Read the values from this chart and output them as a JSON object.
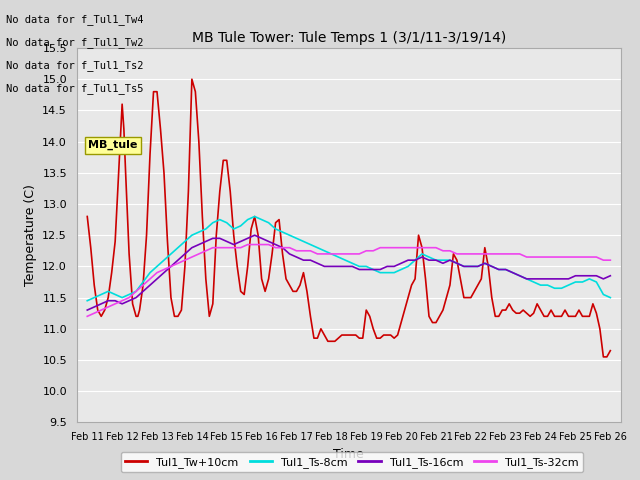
{
  "title": "MB Tule Tower: Tule Temps 1 (3/1/11-3/19/14)",
  "xlabel": "Time",
  "ylabel": "Temperature (C)",
  "ylim": [
    9.5,
    15.5
  ],
  "bg_color": "#d8d8d8",
  "plot_bg_color": "#e8e8e8",
  "grid_color": "#ffffff",
  "no_data_lines": [
    "No data for f_Tul1_Tw4",
    "No data for f_Tul1_Tw2",
    "No data for f_Tul1_Ts2",
    "No data for f_Tul1_Ts5"
  ],
  "tooltip_text": "MB_tule",
  "x_tick_labels": [
    "Feb 11",
    "Feb 12",
    "Feb 13",
    "Feb 14",
    "Feb 15",
    "Feb 16",
    "Feb 17",
    "Feb 18",
    "Feb 19",
    "Feb 20",
    "Feb 21",
    "Feb 22",
    "Feb 23",
    "Feb 24",
    "Feb 25",
    "Feb 26"
  ],
  "series": {
    "Tul1_Tw+10cm": {
      "color": "#cc0000",
      "linewidth": 1.2,
      "data_x": [
        0,
        0.1,
        0.2,
        0.3,
        0.4,
        0.5,
        0.6,
        0.7,
        0.8,
        0.9,
        1.0,
        1.05,
        1.1,
        1.2,
        1.3,
        1.4,
        1.45,
        1.5,
        1.6,
        1.7,
        1.8,
        1.9,
        2.0,
        2.1,
        2.2,
        2.3,
        2.4,
        2.5,
        2.6,
        2.7,
        2.8,
        2.9,
        3.0,
        3.1,
        3.2,
        3.3,
        3.4,
        3.5,
        3.6,
        3.7,
        3.8,
        3.9,
        4.0,
        4.1,
        4.2,
        4.3,
        4.4,
        4.5,
        4.6,
        4.7,
        4.8,
        4.9,
        5.0,
        5.1,
        5.2,
        5.3,
        5.4,
        5.5,
        5.6,
        5.7,
        5.8,
        5.9,
        6.0,
        6.1,
        6.2,
        6.3,
        6.4,
        6.5,
        6.6,
        6.7,
        6.8,
        6.9,
        7.0,
        7.1,
        7.2,
        7.3,
        7.4,
        7.5,
        7.6,
        7.7,
        7.8,
        7.9,
        8.0,
        8.1,
        8.2,
        8.3,
        8.4,
        8.5,
        8.6,
        8.7,
        8.8,
        8.9,
        9.0,
        9.1,
        9.2,
        9.3,
        9.4,
        9.5,
        9.6,
        9.7,
        9.8,
        9.9,
        10.0,
        10.1,
        10.2,
        10.3,
        10.4,
        10.5,
        10.6,
        10.7,
        10.8,
        10.9,
        11.0,
        11.1,
        11.2,
        11.3,
        11.4,
        11.5,
        11.6,
        11.7,
        11.8,
        11.9,
        12.0,
        12.1,
        12.2,
        12.3,
        12.4,
        12.5,
        12.6,
        12.7,
        12.8,
        12.9,
        13.0,
        13.1,
        13.2,
        13.3,
        13.4,
        13.5,
        13.6,
        13.7,
        13.8,
        13.9,
        14.0,
        14.1,
        14.2,
        14.3,
        14.4,
        14.5,
        14.6,
        14.7,
        14.8,
        14.9,
        15.0
      ],
      "data_y": [
        12.8,
        12.3,
        11.7,
        11.3,
        11.2,
        11.3,
        11.5,
        11.9,
        12.4,
        13.5,
        14.6,
        14.2,
        13.5,
        12.2,
        11.4,
        11.2,
        11.2,
        11.3,
        11.7,
        12.5,
        13.8,
        14.8,
        14.8,
        14.2,
        13.5,
        12.4,
        11.5,
        11.2,
        11.2,
        11.3,
        12.0,
        13.2,
        15.0,
        14.8,
        14.0,
        12.8,
        11.8,
        11.2,
        11.4,
        12.5,
        13.2,
        13.7,
        13.7,
        13.2,
        12.5,
        12.0,
        11.6,
        11.55,
        12.0,
        12.6,
        12.8,
        12.5,
        11.8,
        11.6,
        11.8,
        12.2,
        12.7,
        12.75,
        12.2,
        11.8,
        11.7,
        11.6,
        11.6,
        11.7,
        11.9,
        11.6,
        11.2,
        10.85,
        10.85,
        11.0,
        10.9,
        10.8,
        10.8,
        10.8,
        10.85,
        10.9,
        10.9,
        10.9,
        10.9,
        10.9,
        10.85,
        10.85,
        11.3,
        11.2,
        11.0,
        10.85,
        10.85,
        10.9,
        10.9,
        10.9,
        10.85,
        10.9,
        11.1,
        11.3,
        11.5,
        11.7,
        11.8,
        12.5,
        12.3,
        11.8,
        11.2,
        11.1,
        11.1,
        11.2,
        11.3,
        11.5,
        11.7,
        12.2,
        12.1,
        11.8,
        11.5,
        11.5,
        11.5,
        11.6,
        11.7,
        11.8,
        12.3,
        12.0,
        11.5,
        11.2,
        11.2,
        11.3,
        11.3,
        11.4,
        11.3,
        11.25,
        11.25,
        11.3,
        11.25,
        11.2,
        11.25,
        11.4,
        11.3,
        11.2,
        11.2,
        11.3,
        11.2,
        11.2,
        11.2,
        11.3,
        11.2,
        11.2,
        11.2,
        11.3,
        11.2,
        11.2,
        11.2,
        11.4,
        11.25,
        11.0,
        10.55,
        10.55,
        10.65
      ]
    },
    "Tul1_Ts-8cm": {
      "color": "#00dddd",
      "linewidth": 1.2,
      "data_x": [
        0,
        0.2,
        0.4,
        0.6,
        0.8,
        1.0,
        1.2,
        1.4,
        1.6,
        1.8,
        2.0,
        2.2,
        2.4,
        2.6,
        2.8,
        3.0,
        3.2,
        3.4,
        3.6,
        3.8,
        4.0,
        4.2,
        4.4,
        4.6,
        4.8,
        5.0,
        5.2,
        5.4,
        5.6,
        5.8,
        6.0,
        6.2,
        6.4,
        6.6,
        6.8,
        7.0,
        7.2,
        7.4,
        7.6,
        7.8,
        8.0,
        8.2,
        8.4,
        8.6,
        8.8,
        9.0,
        9.2,
        9.4,
        9.6,
        9.8,
        10.0,
        10.2,
        10.4,
        10.6,
        10.8,
        11.0,
        11.2,
        11.4,
        11.6,
        11.8,
        12.0,
        12.2,
        12.4,
        12.6,
        12.8,
        13.0,
        13.2,
        13.4,
        13.6,
        13.8,
        14.0,
        14.2,
        14.4,
        14.6,
        14.8,
        15.0
      ],
      "data_y": [
        11.45,
        11.5,
        11.55,
        11.6,
        11.55,
        11.5,
        11.55,
        11.6,
        11.75,
        11.9,
        12.0,
        12.1,
        12.2,
        12.3,
        12.4,
        12.5,
        12.55,
        12.6,
        12.7,
        12.75,
        12.7,
        12.6,
        12.65,
        12.75,
        12.8,
        12.75,
        12.7,
        12.6,
        12.55,
        12.5,
        12.45,
        12.4,
        12.35,
        12.3,
        12.25,
        12.2,
        12.15,
        12.1,
        12.05,
        12.0,
        12.0,
        11.95,
        11.9,
        11.9,
        11.9,
        11.95,
        12.0,
        12.1,
        12.2,
        12.15,
        12.1,
        12.1,
        12.1,
        12.05,
        12.0,
        12.0,
        12.0,
        12.05,
        12.0,
        11.95,
        11.95,
        11.9,
        11.85,
        11.8,
        11.75,
        11.7,
        11.7,
        11.65,
        11.65,
        11.7,
        11.75,
        11.75,
        11.8,
        11.75,
        11.55,
        11.5
      ]
    },
    "Tul1_Ts-16cm": {
      "color": "#7700bb",
      "linewidth": 1.2,
      "data_x": [
        0,
        0.2,
        0.4,
        0.6,
        0.8,
        1.0,
        1.2,
        1.4,
        1.6,
        1.8,
        2.0,
        2.2,
        2.4,
        2.6,
        2.8,
        3.0,
        3.2,
        3.4,
        3.6,
        3.8,
        4.0,
        4.2,
        4.4,
        4.6,
        4.8,
        5.0,
        5.2,
        5.4,
        5.6,
        5.8,
        6.0,
        6.2,
        6.4,
        6.6,
        6.8,
        7.0,
        7.2,
        7.4,
        7.6,
        7.8,
        8.0,
        8.2,
        8.4,
        8.6,
        8.8,
        9.0,
        9.2,
        9.4,
        9.6,
        9.8,
        10.0,
        10.2,
        10.4,
        10.6,
        10.8,
        11.0,
        11.2,
        11.4,
        11.6,
        11.8,
        12.0,
        12.2,
        12.4,
        12.6,
        12.8,
        13.0,
        13.2,
        13.4,
        13.6,
        13.8,
        14.0,
        14.2,
        14.4,
        14.6,
        14.8,
        15.0
      ],
      "data_y": [
        11.3,
        11.35,
        11.4,
        11.45,
        11.45,
        11.4,
        11.45,
        11.5,
        11.6,
        11.7,
        11.8,
        11.9,
        12.0,
        12.1,
        12.2,
        12.3,
        12.35,
        12.4,
        12.45,
        12.45,
        12.4,
        12.35,
        12.4,
        12.45,
        12.5,
        12.45,
        12.4,
        12.35,
        12.3,
        12.2,
        12.15,
        12.1,
        12.1,
        12.05,
        12.0,
        12.0,
        12.0,
        12.0,
        12.0,
        11.95,
        11.95,
        11.95,
        11.95,
        12.0,
        12.0,
        12.05,
        12.1,
        12.1,
        12.15,
        12.1,
        12.1,
        12.05,
        12.1,
        12.05,
        12.0,
        12.0,
        12.0,
        12.05,
        12.0,
        11.95,
        11.95,
        11.9,
        11.85,
        11.8,
        11.8,
        11.8,
        11.8,
        11.8,
        11.8,
        11.8,
        11.85,
        11.85,
        11.85,
        11.85,
        11.8,
        11.85
      ]
    },
    "Tul1_Ts-32cm": {
      "color": "#ee44ee",
      "linewidth": 1.2,
      "data_x": [
        0,
        0.2,
        0.4,
        0.6,
        0.8,
        1.0,
        1.2,
        1.4,
        1.6,
        1.8,
        2.0,
        2.2,
        2.4,
        2.6,
        2.8,
        3.0,
        3.2,
        3.4,
        3.6,
        3.8,
        4.0,
        4.2,
        4.4,
        4.6,
        4.8,
        5.0,
        5.2,
        5.4,
        5.6,
        5.8,
        6.0,
        6.2,
        6.4,
        6.6,
        6.8,
        7.0,
        7.2,
        7.4,
        7.6,
        7.8,
        8.0,
        8.2,
        8.4,
        8.6,
        8.8,
        9.0,
        9.2,
        9.4,
        9.6,
        9.8,
        10.0,
        10.2,
        10.4,
        10.6,
        10.8,
        11.0,
        11.2,
        11.4,
        11.6,
        11.8,
        12.0,
        12.2,
        12.4,
        12.6,
        12.8,
        13.0,
        13.2,
        13.4,
        13.6,
        13.8,
        14.0,
        14.2,
        14.4,
        14.6,
        14.8,
        15.0
      ],
      "data_y": [
        11.2,
        11.25,
        11.3,
        11.35,
        11.4,
        11.45,
        11.5,
        11.6,
        11.7,
        11.8,
        11.9,
        11.95,
        12.0,
        12.05,
        12.1,
        12.15,
        12.2,
        12.25,
        12.3,
        12.3,
        12.3,
        12.3,
        12.3,
        12.35,
        12.35,
        12.35,
        12.35,
        12.3,
        12.3,
        12.3,
        12.25,
        12.25,
        12.25,
        12.2,
        12.2,
        12.2,
        12.2,
        12.2,
        12.2,
        12.2,
        12.25,
        12.25,
        12.3,
        12.3,
        12.3,
        12.3,
        12.3,
        12.3,
        12.3,
        12.3,
        12.3,
        12.25,
        12.25,
        12.2,
        12.2,
        12.2,
        12.2,
        12.2,
        12.2,
        12.2,
        12.2,
        12.2,
        12.2,
        12.15,
        12.15,
        12.15,
        12.15,
        12.15,
        12.15,
        12.15,
        12.15,
        12.15,
        12.15,
        12.15,
        12.1,
        12.1
      ]
    }
  },
  "legend": {
    "Tul1_Tw+10cm": "#cc0000",
    "Tul1_Ts-8cm": "#00dddd",
    "Tul1_Ts-16cm": "#7700bb",
    "Tul1_Ts-32cm": "#ee44ee"
  }
}
